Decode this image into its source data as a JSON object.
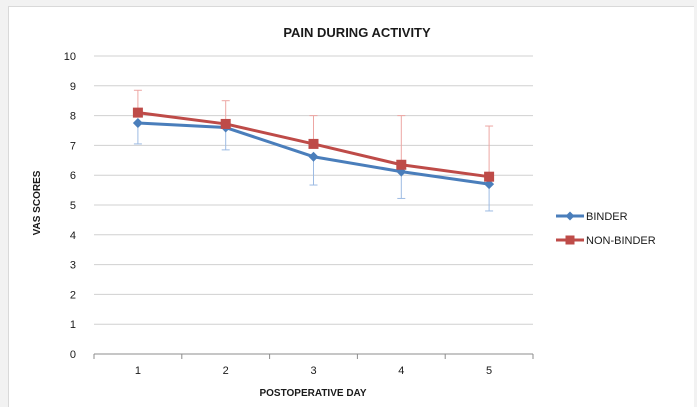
{
  "chart_data": {
    "type": "line",
    "title": "PAIN DURING ACTIVITY",
    "xlabel": "POSTOPERATIVE DAY",
    "ylabel": "VAS SCORES",
    "categories": [
      "1",
      "2",
      "3",
      "4",
      "5"
    ],
    "ylim": [
      0,
      10
    ],
    "yticks": [
      0,
      1,
      2,
      3,
      4,
      5,
      6,
      7,
      8,
      9,
      10
    ],
    "grid": true,
    "legend_position": "right",
    "series": [
      {
        "name": "BINDER",
        "color": "#4a7ebb",
        "marker": "diamond",
        "values": [
          7.75,
          7.6,
          6.62,
          6.12,
          5.7
        ],
        "error_lower": [
          0.7,
          0.75,
          0.95,
          0.9,
          0.9
        ],
        "error_upper": [
          0.0,
          0.0,
          0.0,
          0.0,
          0.0
        ]
      },
      {
        "name": "NON-BINDER",
        "color": "#be4b48",
        "marker": "square",
        "values": [
          8.1,
          7.72,
          7.05,
          6.35,
          5.95
        ],
        "error_lower": [
          0.0,
          0.0,
          0.0,
          0.0,
          0.0
        ],
        "error_upper": [
          0.75,
          0.78,
          0.95,
          1.65,
          1.7
        ]
      }
    ]
  }
}
